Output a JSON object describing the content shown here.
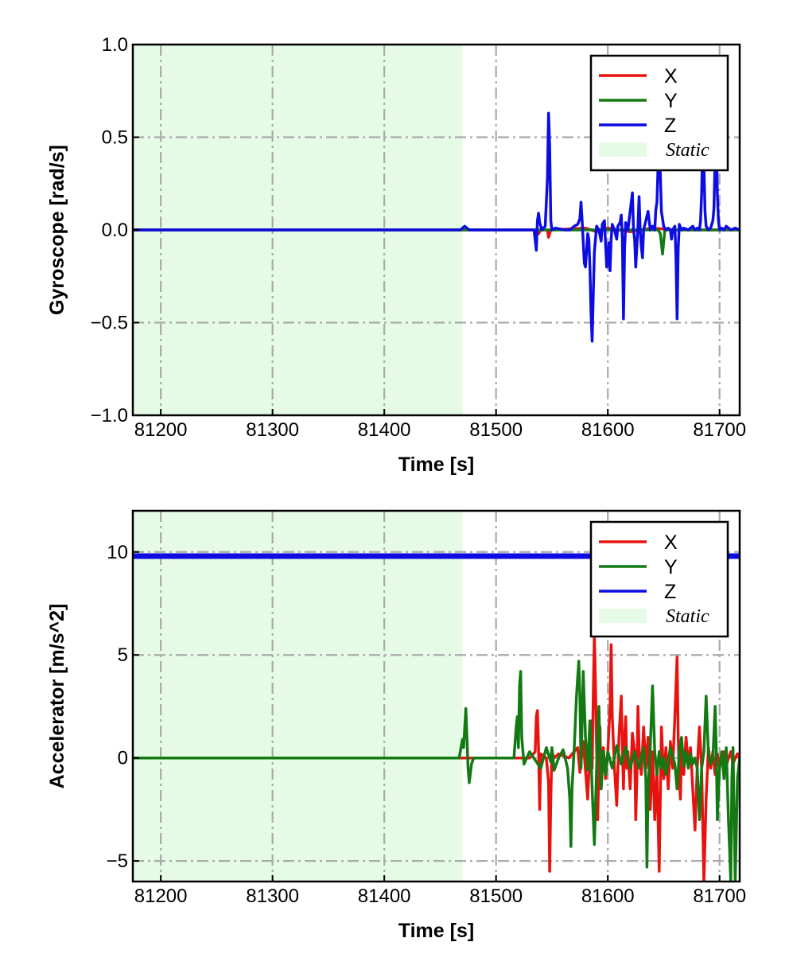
{
  "chart_data": [
    {
      "type": "line",
      "ylabel": "Gyroscope [rad/s]",
      "xlabel": "Time [s]",
      "xlim": [
        81175,
        81718
      ],
      "ylim": [
        -1.0,
        1.0
      ],
      "xticks": [
        81200,
        81300,
        81400,
        81500,
        81600,
        81700
      ],
      "xtick_labels": [
        "81200",
        "81300",
        "81400",
        "81500",
        "81600",
        "81700"
      ],
      "yticks": [
        -1.0,
        -0.5,
        0.0,
        0.5,
        1.0
      ],
      "ytick_labels": [
        "−1.0",
        "−0.5",
        "0.0",
        "0.5",
        "1.0"
      ],
      "grid": true,
      "legend_position": "top-right",
      "static_region": {
        "label": "Static",
        "x_start": 81175,
        "x_end": 81470,
        "color": "#e6fbe6"
      },
      "series": [
        {
          "name": "X",
          "color": "#e8130f",
          "x": [
            81175,
            81470,
            81536,
            81538,
            81540,
            81546,
            81547,
            81549,
            81580,
            81590,
            81600,
            81620,
            81640,
            81660,
            81690,
            81718
          ],
          "y": [
            0,
            0,
            0.0,
            -0.02,
            0.0,
            0.0,
            -0.04,
            0.0,
            0.01,
            -0.01,
            0.01,
            -0.01,
            0.01,
            0.0,
            0.0,
            0.0
          ]
        },
        {
          "name": "Y",
          "color": "#137a13",
          "x": [
            81175,
            81470,
            81540,
            81600,
            81645,
            81647,
            81649,
            81651,
            81690,
            81718
          ],
          "y": [
            0,
            0,
            0.0,
            0.0,
            0.0,
            -0.02,
            -0.13,
            0.0,
            0.0,
            0.0
          ]
        },
        {
          "name": "Z",
          "color": "#0c0ce3",
          "x": [
            81175,
            81468,
            81470,
            81472,
            81474,
            81476,
            81534,
            81536,
            81537,
            81538,
            81539,
            81541,
            81544,
            81546,
            81547,
            81548,
            81549,
            81550,
            81553,
            81562,
            81566,
            81570,
            81573,
            81575,
            81576,
            81577,
            81579,
            81580,
            81582,
            81583,
            81584,
            81585,
            81586,
            81587,
            81588,
            81590,
            81592,
            81593,
            81594,
            81595,
            81597,
            81598,
            81599,
            81600,
            81601,
            81602,
            81603,
            81604,
            81606,
            81608,
            81609,
            81611,
            81612,
            81613,
            81614,
            81615,
            81616,
            81617,
            81618,
            81620,
            81622,
            81623,
            81624,
            81625,
            81627,
            81628,
            81629,
            81630,
            81631,
            81632,
            81634,
            81636,
            81637,
            81638,
            81640,
            81642,
            81643,
            81644,
            81645,
            81646,
            81647,
            81648,
            81650,
            81652,
            81654,
            81656,
            81657,
            81658,
            81660,
            81661,
            81662,
            81663,
            81664,
            81666,
            81668,
            81672,
            81676,
            81678,
            81680,
            81682,
            81683,
            81684,
            81685,
            81686,
            81687,
            81688,
            81690,
            81692,
            81694,
            81695,
            81696,
            81697,
            81698,
            81699,
            81700,
            81702,
            81704,
            81706,
            81710,
            81714,
            81718
          ],
          "y": [
            0,
            0,
            0.01,
            0.02,
            0.01,
            0,
            0,
            -0.11,
            0.05,
            0.09,
            0.04,
            0.0,
            0.02,
            0.28,
            0.63,
            0.45,
            0.05,
            0.0,
            0.01,
            0.0,
            0.0,
            0.02,
            0.03,
            0.06,
            0.15,
            0.05,
            -0.18,
            -0.2,
            -0.02,
            -0.05,
            -0.2,
            -0.45,
            -0.6,
            -0.35,
            -0.12,
            0.02,
            0.0,
            -0.03,
            -0.06,
            0.03,
            0.05,
            -0.08,
            -0.2,
            -0.15,
            -0.07,
            -0.22,
            -0.05,
            0.03,
            0.0,
            -0.05,
            0.02,
            0.04,
            0.08,
            -0.05,
            -0.48,
            -0.1,
            0.04,
            0.02,
            0.0,
            0.1,
            0.2,
            0.0,
            -0.05,
            -0.2,
            0.02,
            0.18,
            0.0,
            -0.09,
            -0.15,
            0.0,
            0.05,
            0.1,
            0.05,
            0.0,
            0.02,
            0.0,
            0.11,
            0.15,
            0.35,
            0.52,
            0.3,
            0.1,
            0.02,
            0.0,
            0.01,
            0.0,
            -0.05,
            0.0,
            0.02,
            -0.15,
            -0.48,
            -0.1,
            0.03,
            0.0,
            0.01,
            0.0,
            0.02,
            0.0,
            0.01,
            0.0,
            0.05,
            0.2,
            0.52,
            0.35,
            0.1,
            0.02,
            0.0,
            0.01,
            0.05,
            0.12,
            0.4,
            0.55,
            0.2,
            0.05,
            0.0,
            0.01,
            0.0,
            0.02,
            0.0,
            0.01,
            0.0
          ]
        }
      ]
    },
    {
      "type": "line",
      "ylabel": "Accelerator [m/s^2]",
      "xlabel": "Time [s]",
      "xlim": [
        81175,
        81718
      ],
      "ylim": [
        -6.0,
        12.0
      ],
      "xticks": [
        81200,
        81300,
        81400,
        81500,
        81600,
        81700
      ],
      "xtick_labels": [
        "81200",
        "81300",
        "81400",
        "81500",
        "81600",
        "81700"
      ],
      "yticks": [
        -5,
        0,
        5,
        10
      ],
      "ytick_labels": [
        "−5",
        "0",
        "5",
        "10"
      ],
      "grid": true,
      "legend_position": "top-right",
      "static_region": {
        "label": "Static",
        "x_start": 81175,
        "x_end": 81470,
        "color": "#e6fbe6"
      },
      "series": [
        {
          "name": "X",
          "color": "#e8130f",
          "x": [
            81175,
            81470,
            81530,
            81535,
            81536,
            81537,
            81538,
            81539,
            81540,
            81545,
            81547,
            81548,
            81549,
            81550,
            81552,
            81556,
            81565,
            81573,
            81575,
            81578,
            81582,
            81584,
            81585,
            81586,
            81587,
            81588,
            81589,
            81590,
            81591,
            81592,
            81593,
            81594,
            81596,
            81598,
            81600,
            81602,
            81603,
            81604,
            81606,
            81608,
            81610,
            81612,
            81613,
            81614,
            81615,
            81616,
            81617,
            81618,
            81620,
            81622,
            81624,
            81625,
            81626,
            81627,
            81628,
            81630,
            81632,
            81634,
            81636,
            81638,
            81640,
            81642,
            81644,
            81646,
            81647,
            81648,
            81649,
            81650,
            81652,
            81654,
            81656,
            81658,
            81660,
            81662,
            81663,
            81664,
            81665,
            81666,
            81668,
            81670,
            81672,
            81674,
            81676,
            81678,
            81680,
            81682,
            81684,
            81686,
            81688,
            81690,
            81692,
            81694,
            81696,
            81698,
            81700,
            81702,
            81704,
            81706,
            81708,
            81710,
            81712,
            81714,
            81716,
            81718
          ],
          "y": [
            0,
            0,
            0,
            0.3,
            2.0,
            2.3,
            0.5,
            -2.5,
            0.2,
            0.0,
            -1.2,
            -5.5,
            -2.0,
            0.3,
            0.0,
            0.2,
            0.0,
            0.5,
            -0.7,
            0.8,
            -2.0,
            0.5,
            1.8,
            -0.5,
            3.0,
            6.0,
            3.5,
            0.5,
            -3.0,
            -0.5,
            1.5,
            -1.5,
            0.5,
            -1.0,
            0.3,
            2.5,
            5.5,
            2.0,
            -0.5,
            -2.3,
            1.0,
            3.0,
            0.5,
            -1.5,
            1.0,
            2.0,
            -0.5,
            0.3,
            -1.5,
            1.2,
            0.3,
            -3.0,
            -1.0,
            2.5,
            0.5,
            -0.8,
            1.5,
            -0.5,
            1.0,
            -2.5,
            0.3,
            -3.0,
            -0.5,
            -5.5,
            -2.0,
            1.5,
            0.3,
            -1.0,
            0.5,
            -1.5,
            0.8,
            -0.5,
            2.0,
            4.9,
            1.0,
            -1.0,
            -2.0,
            0.5,
            -0.8,
            1.0,
            -0.3,
            0.5,
            -1.5,
            -3.5,
            -0.5,
            1.5,
            -0.5,
            -6.0,
            -2.0,
            0.5,
            -0.5,
            0.3,
            -0.8,
            0.2,
            -0.5,
            0.0,
            0.3,
            -0.4,
            0.0,
            0.3,
            -0.3,
            0.0,
            0.2,
            0.0
          ]
        },
        {
          "name": "Y",
          "color": "#137a13",
          "x": [
            81175,
            81467,
            81469,
            81470,
            81471,
            81472,
            81473,
            81474,
            81475,
            81476,
            81478,
            81480,
            81516,
            81518,
            81519,
            81520,
            81521,
            81522,
            81523,
            81525,
            81530,
            81540,
            81545,
            81549,
            81550,
            81552,
            81556,
            81560,
            81564,
            81566,
            81567,
            81568,
            81570,
            81572,
            81574,
            81575,
            81576,
            81578,
            81580,
            81582,
            81584,
            81586,
            81588,
            81590,
            81592,
            81594,
            81596,
            81598,
            81600,
            81604,
            81608,
            81612,
            81616,
            81620,
            81624,
            81628,
            81632,
            81634,
            81635,
            81636,
            81638,
            81640,
            81642,
            81644,
            81646,
            81648,
            81650,
            81652,
            81656,
            81660,
            81662,
            81664,
            81666,
            81668,
            81670,
            81672,
            81674,
            81676,
            81678,
            81680,
            81682,
            81684,
            81686,
            81688,
            81690,
            81692,
            81694,
            81696,
            81697,
            81698,
            81700,
            81702,
            81704,
            81706,
            81708,
            81710,
            81711,
            81712,
            81714,
            81716,
            81718
          ],
          "y": [
            0,
            0,
            0.6,
            0.9,
            0.5,
            1.5,
            2.4,
            1.0,
            -0.5,
            -1.2,
            -0.3,
            0,
            0,
            1.5,
            2.0,
            0.5,
            3.5,
            4.2,
            1.0,
            -0.3,
            0.3,
            -0.5,
            0.5,
            -0.2,
            0.5,
            -0.6,
            0.0,
            0.4,
            -0.5,
            -2.0,
            -4.3,
            -1.5,
            0.5,
            3.0,
            4.7,
            3.0,
            -0.5,
            4.2,
            1.0,
            -0.6,
            1.8,
            -1.5,
            -4.2,
            -0.5,
            2.5,
            -1.5,
            0.3,
            -0.8,
            0.3,
            -0.5,
            0.6,
            -0.3,
            0.5,
            -0.5,
            0.3,
            -0.5,
            0.5,
            -1.0,
            -5.3,
            -1.5,
            0.5,
            3.5,
            0.3,
            -0.8,
            0.3,
            -0.5,
            0.0,
            -0.8,
            0.5,
            -0.3,
            -1.5,
            0.3,
            1.0,
            -0.4,
            0.3,
            -0.5,
            0.2,
            -0.3,
            0.0,
            -0.5,
            -3.0,
            -0.5,
            0.3,
            3.0,
            0.2,
            -0.3,
            0.0,
            2.5,
            0.5,
            -3.0,
            -0.5,
            0.3,
            -1.0,
            0.5,
            -3.0,
            -6.0,
            -1.0,
            0.5,
            -6.0,
            -1.0,
            0.0
          ]
        },
        {
          "name": "Z",
          "color": "#0c0ce3",
          "x": [
            81175,
            81718
          ],
          "y": [
            9.8,
            9.8
          ]
        }
      ]
    }
  ]
}
